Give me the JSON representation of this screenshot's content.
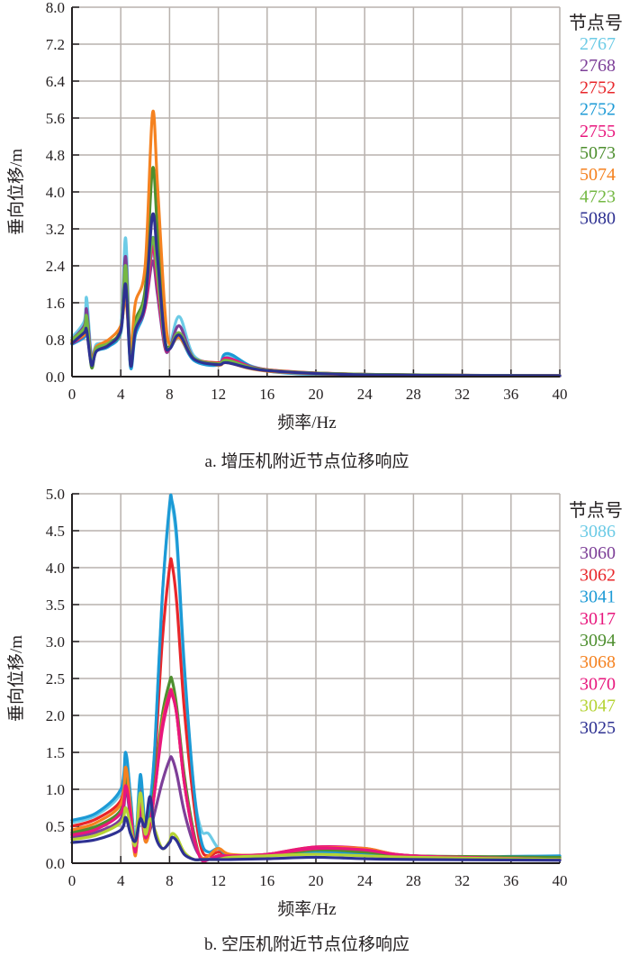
{
  "colors": {
    "grid": "#b9b2ae",
    "axis": "#231f20"
  },
  "chart_data": [
    {
      "type": "line",
      "caption": "a. 增压机附近节点位移响应",
      "xlabel": "频率/Hz",
      "ylabel": "垂向位移/m",
      "xlim": [
        0,
        40
      ],
      "ylim": [
        0,
        8.0
      ],
      "xticks": [
        "0",
        "4",
        "8",
        "12",
        "16",
        "20",
        "24",
        "28",
        "32",
        "36",
        "40"
      ],
      "yticks": [
        "0.0",
        "0.8",
        "1.6",
        "2.4",
        "3.2",
        "4.0",
        "4.8",
        "5.6",
        "6.4",
        "7.2",
        "8.0"
      ],
      "grid": true,
      "legend_title": "节点号",
      "legend_position": "right",
      "x": [
        0,
        1,
        1.2,
        1.6,
        2,
        3,
        4,
        4.4,
        4.8,
        5.2,
        6,
        6.6,
        7,
        7.6,
        8,
        8.8,
        10,
        12,
        12.8,
        16,
        24,
        40
      ],
      "series": [
        {
          "name": "2767",
          "color": "#6ccbe6",
          "values": [
            0.85,
            1.2,
            1.7,
            0.45,
            0.7,
            0.75,
            1.1,
            3.0,
            0.3,
            1.2,
            1.6,
            2.7,
            2.0,
            0.7,
            0.65,
            1.3,
            0.45,
            0.3,
            0.45,
            0.15,
            0.05,
            0.02
          ]
        },
        {
          "name": "2768",
          "color": "#7d3f98",
          "values": [
            0.8,
            1.1,
            1.45,
            0.4,
            0.65,
            0.7,
            1.0,
            2.6,
            0.35,
            1.1,
            1.5,
            2.5,
            1.8,
            0.65,
            0.6,
            1.1,
            0.4,
            0.3,
            0.4,
            0.15,
            0.05,
            0.02
          ]
        },
        {
          "name": "2752",
          "color": "#e8262a",
          "values": [
            0.75,
            0.9,
            1.2,
            0.35,
            0.6,
            0.7,
            1.0,
            2.2,
            0.4,
            1.0,
            1.6,
            2.9,
            2.0,
            0.7,
            0.6,
            0.9,
            0.4,
            0.3,
            0.35,
            0.15,
            0.05,
            0.02
          ]
        },
        {
          "name": "2752",
          "color": "#1c9ad6",
          "values": [
            0.7,
            0.85,
            1.0,
            0.3,
            0.55,
            0.65,
            0.95,
            2.0,
            0.2,
            0.9,
            1.5,
            3.0,
            2.2,
            0.75,
            0.6,
            0.85,
            0.35,
            0.25,
            0.5,
            0.12,
            0.04,
            0.02
          ]
        },
        {
          "name": "2755",
          "color": "#e8177d",
          "values": [
            0.72,
            0.9,
            1.1,
            0.35,
            0.6,
            0.7,
            1.0,
            2.1,
            0.35,
            1.0,
            1.5,
            2.8,
            2.0,
            0.7,
            0.6,
            0.9,
            0.4,
            0.28,
            0.4,
            0.14,
            0.05,
            0.02
          ]
        },
        {
          "name": "5073",
          "color": "#4e8f2f",
          "values": [
            0.78,
            1.0,
            1.2,
            0.2,
            0.6,
            0.72,
            1.05,
            2.3,
            0.25,
            1.2,
            1.9,
            4.5,
            3.2,
            0.9,
            0.65,
            0.9,
            0.4,
            0.28,
            0.35,
            0.14,
            0.05,
            0.02
          ]
        },
        {
          "name": "5074",
          "color": "#f58220",
          "values": [
            0.75,
            0.9,
            1.0,
            0.35,
            0.65,
            0.8,
            1.1,
            1.7,
            0.6,
            1.6,
            2.4,
            5.7,
            4.2,
            1.5,
            0.7,
            0.85,
            0.4,
            0.25,
            0.3,
            0.12,
            0.04,
            0.02
          ]
        },
        {
          "name": "4723",
          "color": "#74b843",
          "values": [
            0.8,
            1.05,
            1.3,
            0.3,
            0.62,
            0.72,
            1.0,
            2.4,
            0.3,
            1.1,
            1.7,
            3.0,
            2.2,
            0.75,
            0.62,
            0.95,
            0.4,
            0.28,
            0.35,
            0.14,
            0.05,
            0.02
          ]
        },
        {
          "name": "5080",
          "color": "#2e3192",
          "values": [
            0.72,
            0.95,
            1.0,
            0.25,
            0.55,
            0.68,
            1.0,
            2.0,
            0.25,
            1.0,
            1.6,
            3.5,
            2.6,
            0.8,
            0.6,
            0.9,
            0.38,
            0.26,
            0.3,
            0.13,
            0.04,
            0.02
          ]
        }
      ]
    },
    {
      "type": "line",
      "caption": "b. 空压机附近节点位移响应",
      "xlabel": "频率/Hz",
      "ylabel": "垂向位移/m",
      "xlim": [
        0,
        40
      ],
      "ylim": [
        0,
        5.0
      ],
      "xticks": [
        "0",
        "4",
        "8",
        "12",
        "16",
        "20",
        "24",
        "28",
        "32",
        "36",
        "40"
      ],
      "yticks": [
        "0.0",
        "0.5",
        "1.0",
        "1.5",
        "2.0",
        "2.5",
        "3.0",
        "3.5",
        "4.0",
        "4.5",
        "5.0"
      ],
      "grid": true,
      "legend_title": "节点号",
      "legend_position": "right",
      "x": [
        0,
        2,
        4,
        4.4,
        4.8,
        5.2,
        5.6,
        6,
        6.4,
        6.8,
        7.4,
        8,
        8.2,
        8.6,
        9.2,
        10,
        10.6,
        11.2,
        12,
        13,
        16,
        20,
        24,
        28,
        40
      ],
      "series": [
        {
          "name": "3086",
          "color": "#6ccbe6",
          "values": [
            0.55,
            0.65,
            0.95,
            1.45,
            0.9,
            0.3,
            1.15,
            0.5,
            0.8,
            1.6,
            3.6,
            4.8,
            4.85,
            4.3,
            2.6,
            1.0,
            0.45,
            0.4,
            0.2,
            0.1,
            0.1,
            0.15,
            0.12,
            0.08,
            0.06
          ]
        },
        {
          "name": "3060",
          "color": "#7d3f98",
          "values": [
            0.35,
            0.42,
            0.6,
            1.0,
            0.6,
            0.15,
            0.7,
            0.3,
            0.45,
            0.7,
            1.1,
            1.4,
            1.42,
            1.2,
            0.7,
            0.25,
            0.08,
            0.05,
            0.08,
            0.1,
            0.12,
            0.2,
            0.15,
            0.1,
            0.05
          ]
        },
        {
          "name": "3062",
          "color": "#e8262a",
          "values": [
            0.5,
            0.6,
            0.85,
            1.3,
            0.8,
            0.2,
            1.0,
            0.45,
            0.7,
            1.4,
            3.0,
            4.0,
            4.05,
            3.5,
            2.1,
            0.8,
            0.2,
            0.1,
            0.15,
            0.1,
            0.12,
            0.22,
            0.18,
            0.1,
            0.05
          ]
        },
        {
          "name": "3041",
          "color": "#1c9ad6",
          "values": [
            0.58,
            0.68,
            1.0,
            1.5,
            0.9,
            0.25,
            1.2,
            0.5,
            0.8,
            1.6,
            3.6,
            4.85,
            4.9,
            4.4,
            2.7,
            1.0,
            0.3,
            0.15,
            0.2,
            0.1,
            0.1,
            0.15,
            0.12,
            0.08,
            0.1
          ]
        },
        {
          "name": "3017",
          "color": "#e8177d",
          "values": [
            0.4,
            0.48,
            0.7,
            1.1,
            0.7,
            0.15,
            0.85,
            0.35,
            0.55,
            1.0,
            1.8,
            2.25,
            2.28,
            2.0,
            1.1,
            0.35,
            0.05,
            0.05,
            0.1,
            0.1,
            0.12,
            0.22,
            0.2,
            0.1,
            0.05
          ]
        },
        {
          "name": "3094",
          "color": "#4e8f2f",
          "values": [
            0.42,
            0.5,
            0.72,
            1.15,
            0.72,
            0.2,
            0.85,
            0.5,
            0.6,
            1.1,
            2.0,
            2.45,
            2.48,
            2.1,
            1.2,
            0.4,
            0.05,
            0.05,
            0.1,
            0.1,
            0.1,
            0.18,
            0.15,
            0.1,
            0.08
          ]
        },
        {
          "name": "3068",
          "color": "#f58220",
          "values": [
            0.45,
            0.55,
            0.8,
            1.3,
            0.75,
            0.1,
            0.9,
            0.3,
            0.5,
            1.0,
            1.9,
            2.3,
            2.32,
            2.0,
            1.1,
            0.35,
            0.08,
            0.1,
            0.2,
            0.12,
            0.12,
            0.2,
            0.2,
            0.1,
            0.05
          ]
        },
        {
          "name": "3070",
          "color": "#e8177d",
          "values": [
            0.38,
            0.46,
            0.68,
            1.05,
            0.68,
            0.15,
            0.82,
            0.35,
            0.55,
            1.0,
            1.85,
            2.3,
            2.3,
            2.0,
            1.1,
            0.35,
            0.05,
            0.05,
            0.1,
            0.1,
            0.12,
            0.2,
            0.18,
            0.1,
            0.05
          ]
        },
        {
          "name": "3047",
          "color": "#b5d334",
          "values": [
            0.32,
            0.38,
            0.55,
            0.75,
            0.5,
            0.25,
            0.95,
            0.4,
            0.6,
            0.45,
            0.2,
            0.3,
            0.4,
            0.35,
            0.15,
            0.05,
            0.05,
            0.05,
            0.05,
            0.08,
            0.1,
            0.12,
            0.1,
            0.08,
            0.05
          ]
        },
        {
          "name": "3025",
          "color": "#2e3192",
          "values": [
            0.28,
            0.32,
            0.45,
            0.62,
            0.4,
            0.3,
            0.6,
            0.5,
            0.9,
            0.4,
            0.2,
            0.28,
            0.35,
            0.3,
            0.12,
            0.05,
            0.05,
            0.05,
            0.05,
            0.05,
            0.06,
            0.08,
            0.06,
            0.05,
            0.04
          ]
        }
      ]
    }
  ]
}
